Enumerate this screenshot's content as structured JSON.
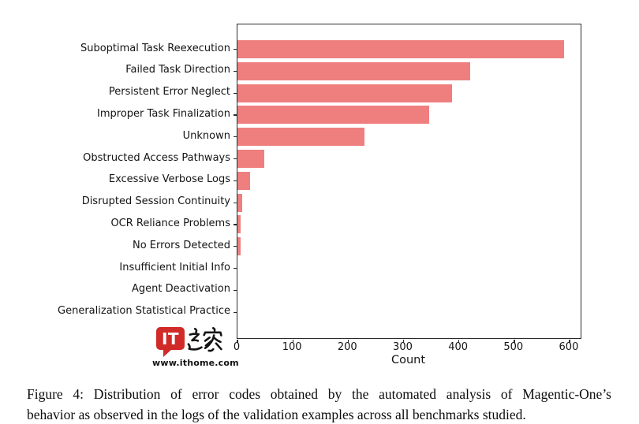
{
  "chart_data": {
    "type": "bar",
    "orientation": "horizontal",
    "xlabel": "Count",
    "ylabel": "",
    "categories": [
      "Suboptimal Task Reexecution",
      "Failed Task Direction",
      "Persistent Error Neglect",
      "Improper Task Finalization",
      "Unknown",
      "Obstructed Access Pathways",
      "Excessive Verbose Logs",
      "Disrupted Session Continuity",
      "OCR Reliance Problems",
      "No Errors Detected",
      "Insufficient Initial Info",
      "Agent Deactivation",
      "Generalization Statistical Practice"
    ],
    "values": [
      590,
      420,
      388,
      346,
      230,
      49,
      23,
      9,
      5,
      5,
      0,
      0,
      0
    ],
    "xticks": [
      0,
      100,
      200,
      300,
      400,
      500,
      600
    ],
    "xlim": [
      0,
      620
    ],
    "grid": false,
    "bar_color": "#ef7f7f",
    "spine_color": "#2b2b2b"
  },
  "watermark": {
    "logo_text": "IT",
    "logo_cjk": "之家",
    "site_url": "www.ithome.com",
    "brand_color": "#d02b28"
  },
  "caption": {
    "lines": [
      "Figure 4: Distribution of error codes obtained by the automated analysis of Magentic-One’s",
      "behavior as observed in the logs of the validation examples across all benchmarks studied."
    ]
  }
}
